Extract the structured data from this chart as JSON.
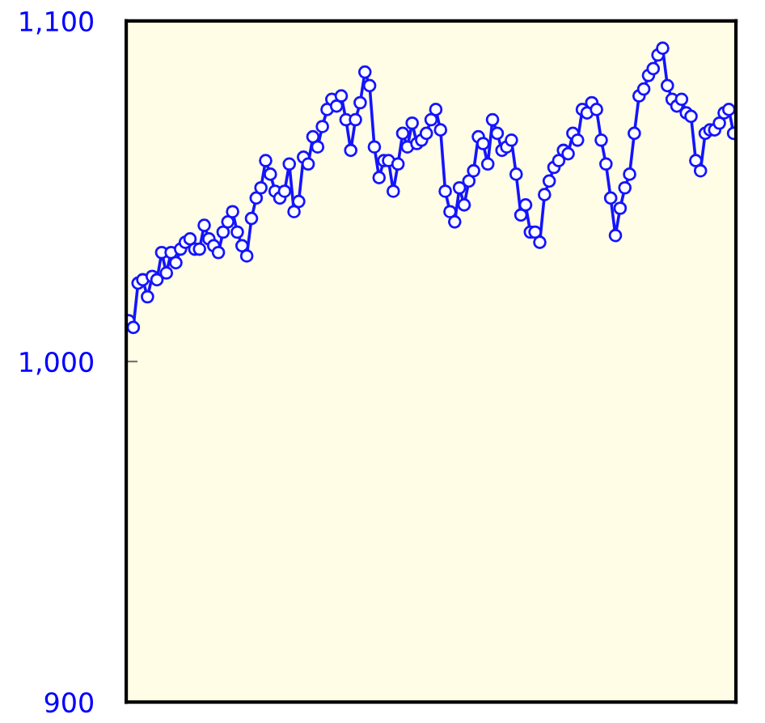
{
  "chart_data": {
    "type": "line",
    "categories": [
      null,
      null,
      null,
      null,
      null,
      null,
      null,
      null,
      null,
      null,
      null,
      null,
      null,
      null,
      null,
      null,
      null,
      null,
      null,
      null,
      null,
      null,
      null,
      null,
      null,
      null,
      null,
      null,
      null,
      null,
      null,
      null,
      null,
      null,
      null,
      null,
      null,
      null,
      null,
      null,
      null,
      null,
      null,
      null,
      null,
      null,
      null,
      null,
      null,
      null,
      null,
      null,
      null,
      null,
      null,
      null,
      null,
      null,
      null,
      null,
      null,
      null,
      null,
      null,
      null,
      null,
      null,
      null,
      null,
      null,
      null,
      null,
      null,
      null,
      null,
      null,
      null,
      null,
      null,
      null,
      null,
      null,
      null,
      null,
      null,
      null,
      null,
      null,
      null,
      null,
      null,
      null,
      null,
      null,
      null,
      null,
      null,
      null,
      null,
      null,
      null,
      null,
      null,
      null,
      null,
      null,
      null,
      null,
      null,
      null,
      null,
      null,
      null,
      null,
      null,
      null,
      null,
      null,
      null,
      null,
      null,
      null,
      null,
      null,
      null,
      null,
      null,
      null,
      null
    ],
    "series": [
      {
        "color": "#1414ff",
        "values": [
          1012,
          1010,
          1023,
          1024,
          1019,
          1025,
          1024,
          1032,
          1026,
          1032,
          1029,
          1033,
          1035,
          1036,
          1033,
          1033,
          1040,
          1036,
          1034,
          1032,
          1038,
          1041,
          1044,
          1038,
          1034,
          1031,
          1042,
          1048,
          1051,
          1059,
          1055,
          1050,
          1048,
          1050,
          1058,
          1044,
          1047,
          1060,
          1058,
          1066,
          1063,
          1069,
          1074,
          1077,
          1075,
          1078,
          1071,
          1062,
          1071,
          1076,
          1085,
          1081,
          1063,
          1054,
          1059,
          1059,
          1050,
          1058,
          1067,
          1063,
          1070,
          1064,
          1065,
          1067,
          1071,
          1074,
          1068,
          1050,
          1044,
          1041,
          1051,
          1046,
          1053,
          1056,
          1066,
          1064,
          1058,
          1071,
          1067,
          1062,
          1063,
          1065,
          1055,
          1043,
          1046,
          1038,
          1038,
          1035,
          1049,
          1053,
          1057,
          1059,
          1062,
          1061,
          1067,
          1065,
          1074,
          1073,
          1076,
          1074,
          1065,
          1058,
          1048,
          1037,
          1045,
          1051,
          1055,
          1067,
          1078,
          1080,
          1084,
          1086,
          1090,
          1092,
          1081,
          1077,
          1075,
          1077,
          1073,
          1072,
          1059,
          1056,
          1067,
          1068,
          1068,
          1070,
          1073,
          1074,
          1067
        ]
      }
    ],
    "ylim": [
      900,
      1100
    ],
    "yticks": [
      {
        "value": 900,
        "label": "900"
      },
      {
        "value": 1000,
        "label": "1,000"
      },
      {
        "value": 1100,
        "label": "1,100"
      }
    ],
    "marker": "circle",
    "line_style": "solid",
    "grid": false,
    "legend": false
  }
}
